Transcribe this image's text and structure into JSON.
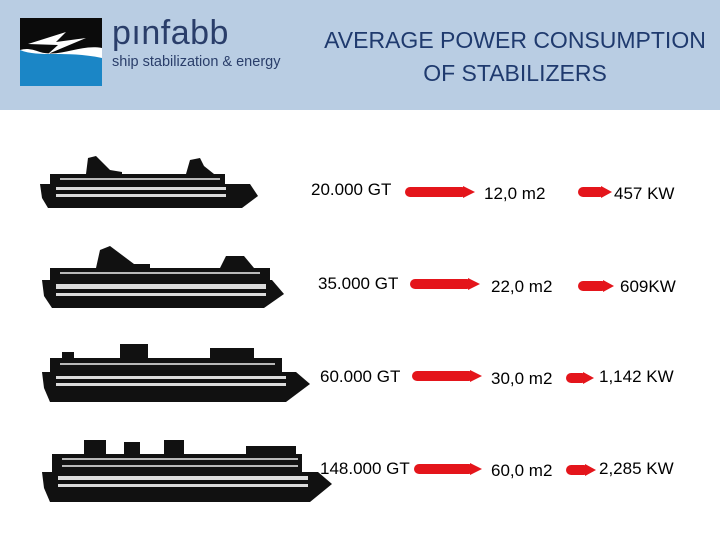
{
  "header": {
    "brand": "pınfabb",
    "tagline": "ship stabilization & energy",
    "title_line1": "AVERAGE POWER CONSUMPTION",
    "title_line2": "OF STABILIZERS"
  },
  "rows": [
    {
      "ship_icon": "ship-small-icon",
      "tonnage": "20.000 GT",
      "area": "12,0 m2",
      "power": "457 KW"
    },
    {
      "ship_icon": "ship-medium-icon",
      "tonnage": "35.000 GT",
      "area": "22,0 m2",
      "power": "609KW"
    },
    {
      "ship_icon": "ship-large-icon",
      "tonnage": "60.000 GT",
      "area": "30,0 m2",
      "power": "1,142 KW"
    },
    {
      "ship_icon": "ship-xlarge-icon",
      "tonnage": "148.000 GT",
      "area": "60,0 m2",
      "power": "2,285 KW"
    }
  ],
  "colors": {
    "header_bg": "#b9cde3",
    "title_text": "#1f3a6e",
    "arrow": "#e4151b",
    "ship": "#111111"
  }
}
